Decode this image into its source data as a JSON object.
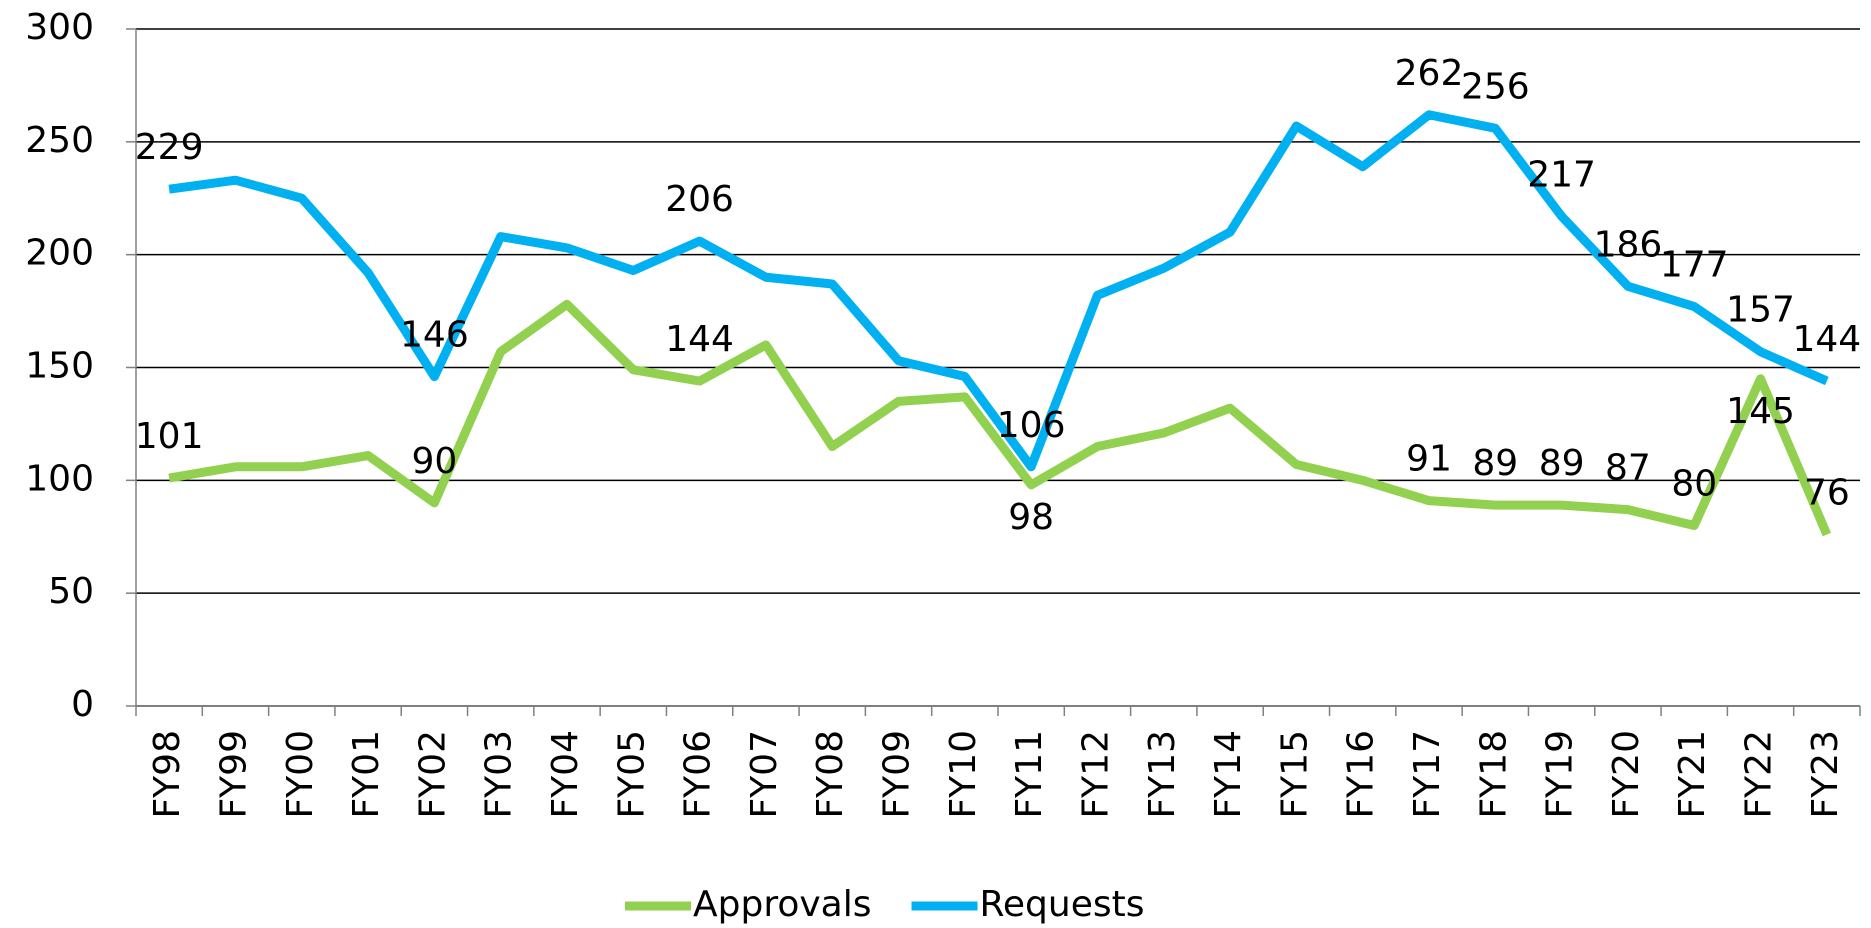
{
  "chart_data": {
    "type": "line",
    "categories": [
      "FY98",
      "FY99",
      "FY00",
      "FY01",
      "FY02",
      "FY03",
      "FY04",
      "FY05",
      "FY06",
      "FY07",
      "FY08",
      "FY09",
      "FY10",
      "FY11",
      "FY12",
      "FY13",
      "FY14",
      "FY15",
      "FY16",
      "FY17",
      "FY18",
      "FY19",
      "FY20",
      "FY21",
      "FY22",
      "FY23"
    ],
    "series": [
      {
        "name": "Approvals",
        "color": "#92d050",
        "values": [
          101,
          106,
          106,
          111,
          90,
          157,
          178,
          149,
          144,
          160,
          115,
          135,
          137,
          98,
          115,
          121,
          132,
          107,
          100,
          91,
          89,
          89,
          87,
          80,
          145,
          76
        ],
        "value_labels": [
          "101",
          null,
          null,
          null,
          "90",
          null,
          null,
          null,
          "144",
          null,
          null,
          null,
          null,
          "98",
          null,
          null,
          null,
          null,
          null,
          "91",
          "89",
          "89",
          "87",
          "80",
          "145",
          "76"
        ]
      },
      {
        "name": "Requests",
        "color": "#00b0f0",
        "values": [
          229,
          233,
          225,
          192,
          146,
          208,
          203,
          193,
          206,
          190,
          187,
          153,
          146,
          106,
          182,
          194,
          210,
          257,
          239,
          262,
          256,
          217,
          186,
          177,
          157,
          144
        ],
        "value_labels": [
          "229",
          null,
          null,
          null,
          "146",
          null,
          null,
          null,
          "206",
          null,
          null,
          null,
          null,
          "106",
          null,
          null,
          null,
          null,
          null,
          "262",
          "256",
          "217",
          "186",
          "177",
          "157",
          "144"
        ]
      }
    ],
    "ylim": [
      0,
      300
    ],
    "yticks": [
      0,
      50,
      100,
      150,
      200,
      250,
      300
    ],
    "grid": true,
    "legend": "bottom"
  }
}
